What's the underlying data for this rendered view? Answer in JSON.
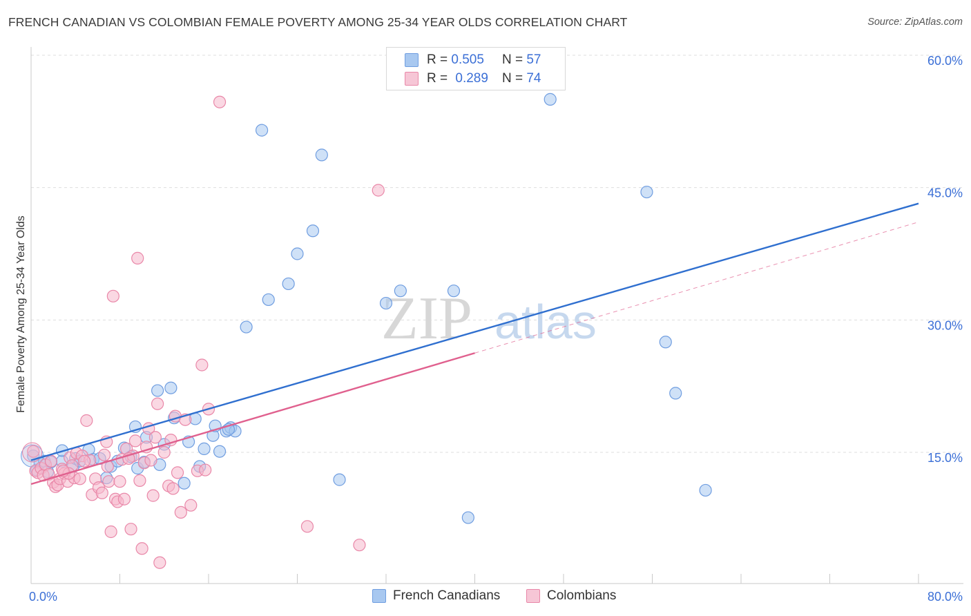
{
  "title": "FRENCH CANADIAN VS COLOMBIAN FEMALE POVERTY AMONG 25-34 YEAR OLDS CORRELATION CHART",
  "source": "Source: ZipAtlas.com",
  "watermark": {
    "zip": "ZIP",
    "atlas": "atlas"
  },
  "legend": {
    "rows": [
      {
        "r_label": "R =",
        "r_value": "0.505",
        "n_label": "N =",
        "n_value": "57"
      },
      {
        "r_label": "R =",
        "r_value": "0.289",
        "n_label": "N =",
        "n_value": "74"
      }
    ]
  },
  "bottom_legend": [
    "French Canadians",
    "Colombians"
  ],
  "colors": {
    "french_canadians_fill": "#a8c8f0",
    "french_canadians_stroke": "#6f9de0",
    "french_canadians_line": "#2f6fcf",
    "colombians_fill": "#f6b8cc",
    "colombians_stroke": "#e987a8",
    "colombians_line": "#e0608e",
    "axis_text": "#3b6fd6",
    "grid": "#dddddd"
  },
  "chart_data": {
    "type": "scatter",
    "title": "FRENCH CANADIAN VS COLOMBIAN FEMALE POVERTY AMONG 25-34 YEAR OLDS CORRELATION CHART",
    "xlabel": "",
    "ylabel": "Female Poverty Among 25-34 Year Olds",
    "xlim": [
      0,
      80
    ],
    "ylim": [
      0,
      60
    ],
    "x_tick_labels": [
      "0.0%",
      "80.0%"
    ],
    "y_ticks": [
      15,
      30,
      45,
      60
    ],
    "y_tick_labels": [
      "15.0%",
      "30.0%",
      "45.0%",
      "60.0%"
    ],
    "grid": true,
    "legend_position": "top-center",
    "series": [
      {
        "name": "French Canadians",
        "r": 0.505,
        "n": 57,
        "trend": {
          "x": [
            0,
            80
          ],
          "y": [
            14.1,
            43.2
          ],
          "dashed_from": null
        },
        "points": [
          [
            0.2,
            14.6
          ],
          [
            0.5,
            13.0
          ],
          [
            0.8,
            13.8
          ],
          [
            1.2,
            14.0
          ],
          [
            1.5,
            12.8
          ],
          [
            1.8,
            13.9
          ],
          [
            2.8,
            14.0
          ],
          [
            2.8,
            15.2
          ],
          [
            3.8,
            13.4
          ],
          [
            4.0,
            14.3
          ],
          [
            4.4,
            14.0
          ],
          [
            5.2,
            15.3
          ],
          [
            5.6,
            14.2
          ],
          [
            6.2,
            14.3
          ],
          [
            6.8,
            12.1
          ],
          [
            7.2,
            13.4
          ],
          [
            7.8,
            14.0
          ],
          [
            8.4,
            15.5
          ],
          [
            9.0,
            14.5
          ],
          [
            9.4,
            17.9
          ],
          [
            9.6,
            13.2
          ],
          [
            10.2,
            13.9
          ],
          [
            10.4,
            16.7
          ],
          [
            11.4,
            22.0
          ],
          [
            11.6,
            13.6
          ],
          [
            12.0,
            15.9
          ],
          [
            12.6,
            22.3
          ],
          [
            12.9,
            18.9
          ],
          [
            13.8,
            11.5
          ],
          [
            14.2,
            16.2
          ],
          [
            14.8,
            18.8
          ],
          [
            15.2,
            13.4
          ],
          [
            15.6,
            15.4
          ],
          [
            16.4,
            16.9
          ],
          [
            16.6,
            18.0
          ],
          [
            17.0,
            15.1
          ],
          [
            17.6,
            17.4
          ],
          [
            18.0,
            17.8
          ],
          [
            18.4,
            17.4
          ],
          [
            19.4,
            29.2
          ],
          [
            20.8,
            51.5
          ],
          [
            21.4,
            32.3
          ],
          [
            23.2,
            34.1
          ],
          [
            24.0,
            37.5
          ],
          [
            25.4,
            40.1
          ],
          [
            26.2,
            48.7
          ],
          [
            27.8,
            11.9
          ],
          [
            32.0,
            31.9
          ],
          [
            33.3,
            33.3
          ],
          [
            38.1,
            33.3
          ],
          [
            39.4,
            7.6
          ],
          [
            46.8,
            55.0
          ],
          [
            55.5,
            44.5
          ],
          [
            57.2,
            27.5
          ],
          [
            58.1,
            21.7
          ],
          [
            60.8,
            10.7
          ],
          [
            17.8,
            17.6
          ]
        ]
      },
      {
        "name": "Colombians",
        "r": 0.289,
        "n": 74,
        "trend": {
          "x": [
            0,
            80
          ],
          "y": [
            11.4,
            41.1
          ],
          "dashed_from": 40
        },
        "points": [
          [
            0.2,
            15.1
          ],
          [
            0.4,
            12.9
          ],
          [
            0.6,
            12.7
          ],
          [
            0.9,
            13.2
          ],
          [
            1.1,
            12.4
          ],
          [
            1.3,
            13.6
          ],
          [
            1.6,
            12.5
          ],
          [
            1.8,
            14.0
          ],
          [
            2.0,
            11.6
          ],
          [
            2.2,
            11.1
          ],
          [
            2.4,
            11.3
          ],
          [
            2.6,
            12.0
          ],
          [
            2.8,
            13.1
          ],
          [
            3.0,
            12.6
          ],
          [
            3.3,
            11.7
          ],
          [
            3.5,
            14.4
          ],
          [
            3.7,
            13.5
          ],
          [
            3.9,
            12.1
          ],
          [
            4.1,
            14.9
          ],
          [
            4.4,
            12.0
          ],
          [
            4.6,
            14.6
          ],
          [
            5.0,
            18.6
          ],
          [
            5.3,
            14.1
          ],
          [
            5.5,
            10.2
          ],
          [
            5.8,
            12.0
          ],
          [
            6.1,
            11.0
          ],
          [
            6.4,
            10.4
          ],
          [
            6.6,
            14.7
          ],
          [
            6.8,
            16.2
          ],
          [
            7.0,
            11.7
          ],
          [
            7.2,
            6.0
          ],
          [
            7.4,
            32.7
          ],
          [
            7.6,
            9.7
          ],
          [
            7.8,
            9.4
          ],
          [
            8.0,
            11.7
          ],
          [
            8.2,
            14.2
          ],
          [
            8.4,
            9.7
          ],
          [
            8.6,
            15.4
          ],
          [
            9.0,
            6.3
          ],
          [
            9.2,
            14.6
          ],
          [
            9.4,
            16.3
          ],
          [
            9.6,
            37.0
          ],
          [
            9.8,
            11.8
          ],
          [
            10.0,
            4.1
          ],
          [
            10.2,
            13.8
          ],
          [
            10.4,
            15.6
          ],
          [
            10.6,
            17.7
          ],
          [
            10.8,
            14.1
          ],
          [
            11.0,
            10.1
          ],
          [
            11.2,
            16.7
          ],
          [
            11.4,
            20.5
          ],
          [
            11.6,
            2.5
          ],
          [
            12.0,
            15.0
          ],
          [
            12.4,
            11.2
          ],
          [
            12.6,
            16.4
          ],
          [
            12.8,
            10.9
          ],
          [
            13.0,
            19.1
          ],
          [
            13.2,
            12.7
          ],
          [
            13.5,
            8.2
          ],
          [
            13.9,
            18.7
          ],
          [
            14.4,
            9.0
          ],
          [
            15.0,
            12.9
          ],
          [
            15.4,
            24.9
          ],
          [
            15.7,
            13.0
          ],
          [
            16.0,
            19.9
          ],
          [
            17.0,
            54.7
          ],
          [
            24.9,
            6.6
          ],
          [
            29.6,
            4.5
          ],
          [
            31.3,
            44.7
          ],
          [
            6.9,
            13.4
          ],
          [
            4.8,
            14.0
          ],
          [
            3.4,
            12.6
          ],
          [
            8.8,
            14.3
          ],
          [
            2.9,
            12.9
          ]
        ]
      }
    ]
  }
}
